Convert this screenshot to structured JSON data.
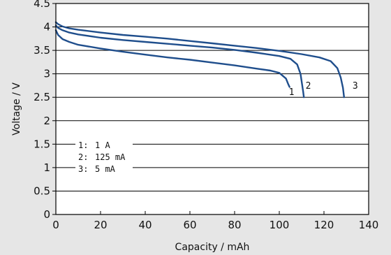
{
  "chart_data": {
    "type": "line",
    "xlabel": "Capacity / mAh",
    "ylabel": "Voltage / V",
    "xlim": [
      0,
      140
    ],
    "ylim": [
      0,
      4.5
    ],
    "x_ticks": [
      0,
      20,
      40,
      60,
      80,
      100,
      120,
      140
    ],
    "y_ticks": [
      0,
      0.5,
      1,
      1.5,
      2,
      2.5,
      3,
      3.5,
      4,
      4.5
    ],
    "x_tick_labels": [
      "0",
      "20",
      "40",
      "60",
      "80",
      "100",
      "120",
      "140"
    ],
    "y_tick_labels": [
      "0",
      "0.5",
      "1",
      "1.5",
      "2",
      "2.5",
      "3",
      "3.5",
      "4",
      "4.5"
    ],
    "grid": "horizontal",
    "legend_position": "lower-left",
    "legend": [
      {
        "num": "1:",
        "label": "1 A"
      },
      {
        "num": "2:",
        "label": "125 mA"
      },
      {
        "num": "3:",
        "label": "5 mA"
      }
    ],
    "curve_color": "#1f4e8c",
    "series": [
      {
        "name": "1",
        "x": [
          0,
          1,
          3,
          6,
          10,
          20,
          30,
          40,
          50,
          60,
          70,
          80,
          90,
          96,
          100,
          103,
          104,
          104.6
        ],
        "y": [
          3.93,
          3.83,
          3.74,
          3.68,
          3.62,
          3.54,
          3.47,
          3.41,
          3.35,
          3.3,
          3.24,
          3.18,
          3.11,
          3.07,
          3.02,
          2.9,
          2.78,
          2.72
        ]
      },
      {
        "name": "2",
        "x": [
          0,
          1,
          3,
          6,
          10,
          20,
          30,
          40,
          50,
          60,
          70,
          80,
          90,
          100,
          105,
          108,
          109.5,
          110.2,
          110.7,
          111
        ],
        "y": [
          4.03,
          3.98,
          3.93,
          3.88,
          3.84,
          3.77,
          3.72,
          3.68,
          3.64,
          3.6,
          3.56,
          3.51,
          3.45,
          3.38,
          3.32,
          3.2,
          3.0,
          2.78,
          2.62,
          2.5
        ]
      },
      {
        "name": "3",
        "x": [
          0,
          1,
          3,
          6,
          10,
          20,
          30,
          40,
          50,
          60,
          70,
          80,
          90,
          100,
          110,
          118,
          123,
          126,
          127.5,
          128.5,
          129
        ],
        "y": [
          4.1,
          4.06,
          4.01,
          3.97,
          3.94,
          3.88,
          3.83,
          3.79,
          3.75,
          3.7,
          3.65,
          3.6,
          3.55,
          3.49,
          3.42,
          3.35,
          3.27,
          3.12,
          2.92,
          2.7,
          2.5
        ]
      }
    ],
    "curve_labels": [
      {
        "text": "1",
        "x": 105.5,
        "y": 2.55
      },
      {
        "text": "2",
        "x": 113,
        "y": 2.68
      },
      {
        "text": "3",
        "x": 134,
        "y": 2.68
      }
    ]
  }
}
